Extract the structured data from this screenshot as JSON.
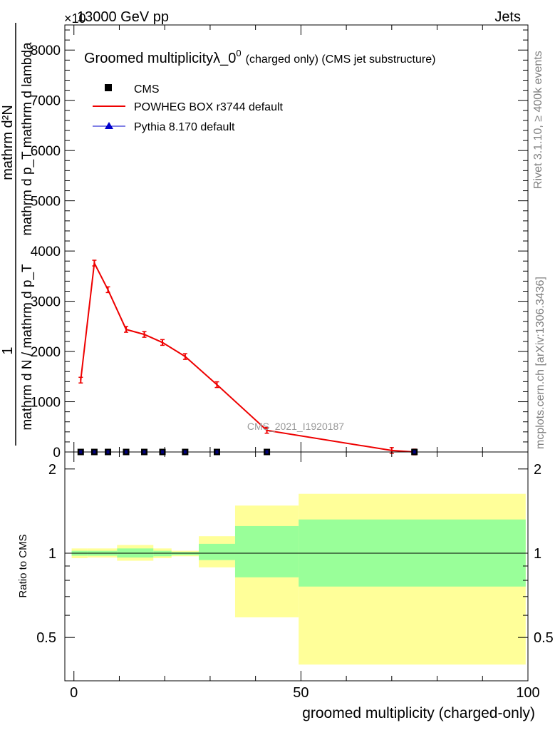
{
  "header": {
    "left": "13000 GeV pp",
    "right": "Jets",
    "exponent": "×10"
  },
  "side_text": {
    "rivet": "Rivet 3.1.10, ≥ 400k events",
    "mcplots": "mcplots.cern.ch [arXiv:1306.3436]"
  },
  "colors": {
    "cms": "#000000",
    "powheg": "#ee0000",
    "pythia": "#0000cc",
    "band_inner": "#99ff99",
    "band_outer": "#ffff99"
  },
  "chart_data": [
    {
      "type": "line",
      "title": "Groomed multiplicityλ_0⁰ (charged only) (CMS jet substructure)",
      "title_main": "Groomed multiplicityλ_0",
      "title_sup": "0",
      "title_small": "(charged only) (CMS jet substructure)",
      "watermark": "CMS_2021_I1920187",
      "ylabel_numerator": "mathrm d²N",
      "ylabel_denominator": "mathrm d p_T mathrm d lambda",
      "ylabel_prefix_num": "1",
      "ylabel_prefix_den": "mathrm d N / mathrm d p_T",
      "yticks": [
        0,
        1000,
        2000,
        3000,
        4000,
        5000,
        6000,
        7000,
        8000
      ],
      "ylim": [
        0,
        8500
      ],
      "xlim": [
        -2,
        100
      ],
      "legend": [
        {
          "name": "CMS",
          "marker": "square"
        },
        {
          "name": "POWHEG BOX r3744 default",
          "marker": "line"
        },
        {
          "name": "Pythia 8.170 default",
          "marker": "triangle"
        }
      ],
      "series": [
        {
          "name": "CMS",
          "x": [
            1.5,
            4.5,
            7.5,
            11.5,
            15.5,
            19.5,
            24.5,
            31.5,
            42.5,
            75
          ],
          "values": [
            0,
            0,
            0,
            0,
            0,
            0,
            0,
            0,
            0,
            0
          ]
        },
        {
          "name": "POWHEG BOX r3744 default",
          "x": [
            1.5,
            4.5,
            7.5,
            11.5,
            15.5,
            19.5,
            24.5,
            31.5,
            42.5,
            70,
            75
          ],
          "values": [
            1430,
            3760,
            3230,
            2440,
            2340,
            2180,
            1900,
            1340,
            430,
            30,
            0
          ]
        }
      ]
    },
    {
      "type": "area",
      "ylabel": "Ratio to CMS",
      "xlabel": "groomed multiplicity (charged-only)",
      "xticks": [
        0,
        50,
        100
      ],
      "yticks": [
        0.5,
        1,
        2
      ],
      "xlim": [
        -2,
        100
      ],
      "ylim": [
        0.35,
        2.3
      ],
      "bins": [
        {
          "x": [
            -0.5,
            3.0
          ],
          "inner": [
            0.98,
            1.02
          ],
          "outer": [
            0.96,
            1.04
          ]
        },
        {
          "x": [
            3.0,
            9.5
          ],
          "inner": [
            0.98,
            1.02
          ],
          "outer": [
            0.965,
            1.04
          ]
        },
        {
          "x": [
            9.5,
            17.5
          ],
          "inner": [
            0.965,
            1.04
          ],
          "outer": [
            0.94,
            1.07
          ]
        },
        {
          "x": [
            17.5,
            21.5
          ],
          "inner": [
            0.975,
            1.02
          ],
          "outer": [
            0.96,
            1.04
          ]
        },
        {
          "x": [
            21.5,
            27.5
          ],
          "inner": [
            0.985,
            1.01
          ],
          "outer": [
            0.975,
            1.02
          ]
        },
        {
          "x": [
            27.5,
            35.5
          ],
          "inner": [
            0.945,
            1.08
          ],
          "outer": [
            0.89,
            1.15
          ]
        },
        {
          "x": [
            35.5,
            49.5
          ],
          "inner": [
            0.82,
            1.25
          ],
          "outer": [
            0.59,
            1.48
          ]
        },
        {
          "x": [
            49.5,
            99.5
          ],
          "inner": [
            0.76,
            1.32
          ],
          "outer": [
            0.4,
            1.63
          ]
        }
      ],
      "reference_line": 1
    }
  ]
}
